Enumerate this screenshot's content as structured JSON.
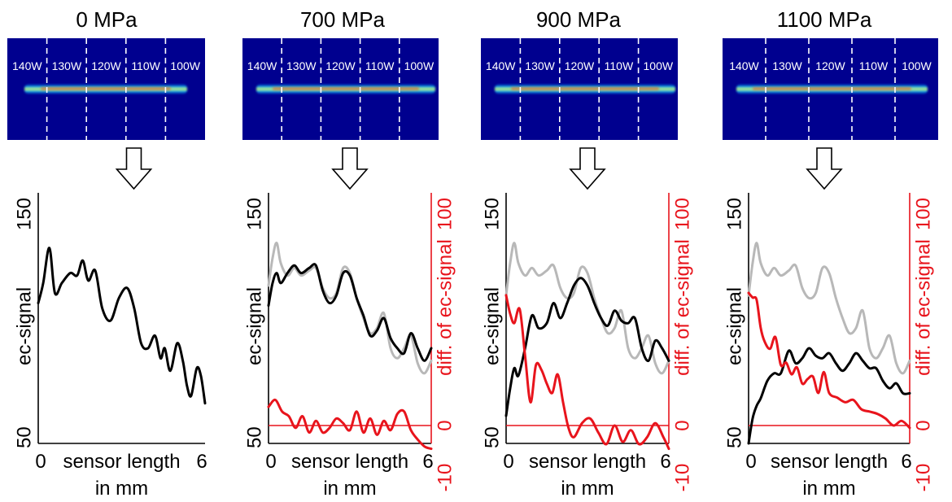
{
  "figure": {
    "arrow_icon": "down-arrow-outline-icon",
    "colors": {
      "current_signal": "#000000",
      "reference_signal": "#b8b8b8",
      "difference": "#e8141c",
      "heatmap_bg": "#00008f"
    }
  },
  "chart_data": [
    {
      "type": "line",
      "title": "0 MPa",
      "xlabel": "sensor length",
      "xlabel_unit": "in mm",
      "ylabel": "ec-signal",
      "xlim": [
        0,
        6
      ],
      "ylim": [
        50,
        150
      ],
      "x_ticks": [
        "0",
        "6"
      ],
      "y_ticks": [
        "50",
        "150"
      ],
      "heatmap_labels": [
        "140W",
        "130W",
        "120W",
        "110W",
        "100W"
      ],
      "series": [
        {
          "role": "current",
          "x": [
            0,
            0.18,
            0.4,
            0.6,
            0.85,
            1.15,
            1.4,
            1.6,
            1.8,
            2.05,
            2.3,
            2.6,
            2.9,
            3.2,
            3.45,
            3.7,
            3.95,
            4.2,
            4.4,
            4.55,
            4.75,
            5.0,
            5.2,
            5.35,
            5.5,
            5.7,
            5.85,
            6.0
          ],
          "y": [
            106,
            114,
            128,
            110,
            114,
            118,
            117,
            123,
            115,
            119,
            104,
            99,
            108,
            112,
            104,
            90,
            88,
            93,
            84,
            88,
            79,
            90,
            83,
            73,
            69,
            80,
            77,
            66
          ]
        }
      ]
    },
    {
      "type": "line",
      "title": "700 MPa",
      "xlabel": "sensor length",
      "xlabel_unit": "in mm",
      "ylabel": "ec-signal",
      "y2label": "diff. of ec-signal",
      "xlim": [
        0,
        6
      ],
      "ylim": [
        50,
        150
      ],
      "y2lim": [
        -10,
        100
      ],
      "x_ticks": [
        "0",
        "6"
      ],
      "y_ticks": [
        "50",
        "150"
      ],
      "y2_ticks": [
        "-10",
        "0",
        "100"
      ],
      "heatmap_labels": [
        "140W",
        "130W",
        "120W",
        "110W",
        "100W"
      ],
      "series": [
        {
          "role": "reference",
          "x": [
            0,
            0.15,
            0.3,
            0.45,
            0.7,
            0.95,
            1.2,
            1.5,
            1.75,
            2.0,
            2.25,
            2.5,
            2.75,
            3.0,
            3.25,
            3.5,
            3.75,
            4.0,
            4.25,
            4.5,
            4.75,
            5.0,
            5.25,
            5.5,
            5.75,
            6.0
          ],
          "y": [
            113,
            124,
            130,
            122,
            117,
            120,
            117,
            119,
            120,
            112,
            108,
            110,
            120,
            118,
            108,
            100,
            94,
            96,
            102,
            88,
            84,
            88,
            93,
            82,
            78,
            83
          ]
        },
        {
          "role": "current",
          "x": [
            0,
            0.15,
            0.3,
            0.45,
            0.7,
            0.95,
            1.2,
            1.5,
            1.75,
            2.0,
            2.25,
            2.5,
            2.75,
            3.0,
            3.25,
            3.5,
            3.75,
            4.0,
            4.25,
            4.5,
            4.75,
            5.0,
            5.25,
            5.5,
            5.75,
            6.0
          ],
          "y": [
            105,
            114,
            118,
            114,
            118,
            121,
            118,
            120,
            121,
            111,
            106,
            109,
            118,
            117,
            108,
            101,
            93,
            95,
            100,
            92,
            88,
            86,
            94,
            88,
            83,
            88
          ]
        },
        {
          "role": "difference",
          "x": [
            0,
            0.25,
            0.5,
            0.75,
            1.0,
            1.25,
            1.5,
            1.75,
            2.0,
            2.25,
            2.5,
            2.75,
            3.0,
            3.25,
            3.5,
            3.75,
            4.0,
            4.25,
            4.5,
            4.75,
            5.0,
            5.25,
            5.5,
            5.75,
            6.0
          ],
          "y": [
            8,
            11,
            6,
            4,
            -1,
            4,
            -3,
            2,
            -3,
            -1,
            3,
            1,
            -2,
            6,
            -3,
            3,
            -4,
            2,
            -2,
            5,
            6,
            -2,
            -6,
            -9,
            -10
          ]
        }
      ]
    },
    {
      "type": "line",
      "title": "900 MPa",
      "xlabel": "sensor length",
      "xlabel_unit": "in mm",
      "ylabel": "ec-signal",
      "y2label": "diff. of ec-signal",
      "xlim": [
        0,
        6
      ],
      "ylim": [
        50,
        150
      ],
      "y2lim": [
        -10,
        100
      ],
      "x_ticks": [
        "0",
        "6"
      ],
      "y_ticks": [
        "50",
        "150"
      ],
      "y2_ticks": [
        "-10",
        "0",
        "100"
      ],
      "heatmap_labels": [
        "140W",
        "130W",
        "120W",
        "110W",
        "100W"
      ],
      "series": [
        {
          "role": "reference",
          "x": [
            0,
            0.15,
            0.3,
            0.45,
            0.7,
            0.95,
            1.2,
            1.5,
            1.75,
            2.0,
            2.25,
            2.5,
            2.75,
            3.0,
            3.25,
            3.5,
            3.75,
            4.0,
            4.25,
            4.5,
            4.75,
            5.0,
            5.25,
            5.5,
            5.75,
            6.0
          ],
          "y": [
            109,
            122,
            130,
            122,
            117,
            120,
            117,
            119,
            121,
            112,
            108,
            110,
            120,
            118,
            108,
            100,
            94,
            96,
            103,
            88,
            84,
            88,
            93,
            82,
            78,
            83
          ]
        },
        {
          "role": "current",
          "x": [
            0,
            0.15,
            0.3,
            0.45,
            0.7,
            0.95,
            1.2,
            1.5,
            1.75,
            2.0,
            2.25,
            2.5,
            2.75,
            3.0,
            3.25,
            3.5,
            3.75,
            4.0,
            4.25,
            4.5,
            4.75,
            5.0,
            5.25,
            5.5,
            5.75,
            6.0
          ],
          "y": [
            61,
            72,
            80,
            77,
            88,
            101,
            96,
            98,
            106,
            100,
            106,
            113,
            116,
            113,
            106,
            100,
            97,
            103,
            99,
            98,
            100,
            88,
            83,
            91,
            88,
            83
          ]
        },
        {
          "role": "difference",
          "x": [
            0,
            0.15,
            0.3,
            0.5,
            0.7,
            0.9,
            1.1,
            1.3,
            1.5,
            1.7,
            1.9,
            2.1,
            2.3,
            2.5,
            2.8,
            3.1,
            3.4,
            3.7,
            4.0,
            4.3,
            4.6,
            4.9,
            5.2,
            5.5,
            5.8,
            6.0
          ],
          "y": [
            56,
            48,
            44,
            50,
            30,
            10,
            26,
            24,
            18,
            14,
            22,
            10,
            -1,
            -5,
            1,
            3,
            -3,
            -8,
            0,
            -7,
            -2,
            -8,
            -5,
            1,
            -5,
            -10
          ]
        }
      ]
    },
    {
      "type": "line",
      "title": "1100 MPa",
      "xlabel": "sensor length",
      "xlabel_unit": "in mm",
      "ylabel": "ec-signal",
      "y2label": "diff. of ec-signal",
      "xlim": [
        0,
        6
      ],
      "ylim": [
        50,
        150
      ],
      "y2lim": [
        -10,
        100
      ],
      "x_ticks": [
        "0",
        "6"
      ],
      "y_ticks": [
        "50",
        "150"
      ],
      "y2_ticks": [
        "-10",
        "0",
        "100"
      ],
      "heatmap_labels": [
        "140W",
        "130W",
        "120W",
        "110W",
        "100W"
      ],
      "series": [
        {
          "role": "reference",
          "x": [
            0,
            0.15,
            0.3,
            0.45,
            0.7,
            0.95,
            1.2,
            1.5,
            1.75,
            2.0,
            2.25,
            2.5,
            2.75,
            3.0,
            3.25,
            3.5,
            3.75,
            4.0,
            4.25,
            4.5,
            4.75,
            5.0,
            5.25,
            5.5,
            5.75,
            6.0
          ],
          "y": [
            109,
            122,
            130,
            122,
            117,
            120,
            117,
            119,
            121,
            112,
            108,
            110,
            120,
            118,
            108,
            100,
            94,
            96,
            103,
            88,
            84,
            88,
            93,
            82,
            78,
            83
          ]
        },
        {
          "role": "current",
          "x": [
            0,
            0.15,
            0.3,
            0.45,
            0.7,
            0.95,
            1.2,
            1.5,
            1.75,
            2.0,
            2.25,
            2.5,
            2.75,
            3.0,
            3.25,
            3.5,
            3.75,
            4.0,
            4.25,
            4.5,
            4.75,
            5.0,
            5.25,
            5.5,
            5.75,
            6.0
          ],
          "y": [
            50,
            60,
            65,
            68,
            75,
            78,
            78,
            87,
            82,
            84,
            88,
            85,
            84,
            86,
            82,
            79,
            82,
            86,
            83,
            80,
            80,
            75,
            72,
            74,
            70,
            70
          ]
        },
        {
          "role": "difference",
          "x": [
            0,
            0.15,
            0.3,
            0.45,
            0.6,
            0.8,
            1.0,
            1.2,
            1.4,
            1.6,
            1.8,
            2.0,
            2.2,
            2.4,
            2.6,
            2.8,
            3.0,
            3.3,
            3.6,
            3.9,
            4.2,
            4.5,
            4.8,
            5.1,
            5.4,
            5.7,
            6.0
          ],
          "y": [
            57,
            55,
            54,
            42,
            36,
            33,
            38,
            26,
            27,
            22,
            25,
            18,
            20,
            21,
            14,
            23,
            14,
            12,
            10,
            11,
            7,
            6,
            5,
            3,
            0,
            2,
            -1
          ]
        }
      ]
    }
  ]
}
